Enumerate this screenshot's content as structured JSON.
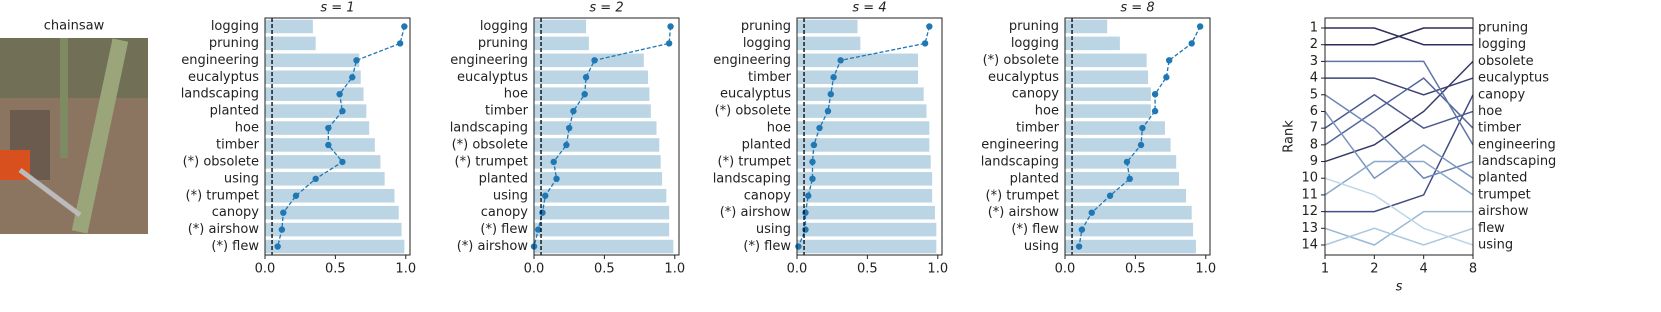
{
  "image": {
    "title": "chainsaw"
  },
  "chart_data": [
    {
      "type": "bar",
      "orientation": "horizontal",
      "title": "s = 1",
      "categories": [
        "logging",
        "pruning",
        "engineering",
        "eucalyptus",
        "landscaping",
        "planted",
        "hoe",
        "timber",
        "(*) obsolete",
        "using",
        "(*) trumpet",
        "canopy",
        "(*) airshow",
        "(*) flew"
      ],
      "series": [
        {
          "type": "bar",
          "color": "#bcd5e4",
          "values": [
            0.34,
            0.36,
            0.67,
            0.68,
            0.7,
            0.72,
            0.74,
            0.78,
            0.82,
            0.85,
            0.92,
            0.95,
            0.97,
            0.99
          ]
        },
        {
          "type": "line",
          "color": "#1f77b4",
          "values": [
            0.99,
            0.96,
            0.65,
            0.62,
            0.53,
            0.55,
            0.45,
            0.45,
            0.55,
            0.36,
            0.22,
            0.13,
            0.12,
            0.09
          ]
        }
      ],
      "threshold": 0.05,
      "xlim": [
        0,
        1.03
      ],
      "xticks": [
        {
          "value": 0,
          "label": "0.0"
        },
        0.5,
        {
          "value": 1,
          "label": "1.0"
        }
      ]
    },
    {
      "type": "bar",
      "orientation": "horizontal",
      "title": "s = 2",
      "categories": [
        "logging",
        "pruning",
        "engineering",
        "eucalyptus",
        "hoe",
        "timber",
        "landscaping",
        "(*) obsolete",
        "(*) trumpet",
        "planted",
        "using",
        "canopy",
        "(*) flew",
        "(*) airshow"
      ],
      "series": [
        {
          "type": "bar",
          "color": "#bcd5e4",
          "values": [
            0.37,
            0.39,
            0.78,
            0.81,
            0.82,
            0.83,
            0.87,
            0.89,
            0.9,
            0.91,
            0.94,
            0.96,
            0.96,
            0.99
          ]
        },
        {
          "type": "line",
          "color": "#1f77b4",
          "values": [
            0.97,
            0.96,
            0.43,
            0.37,
            0.36,
            0.28,
            0.25,
            0.23,
            0.14,
            0.16,
            0.08,
            0.06,
            0.03,
            0.0
          ]
        }
      ],
      "threshold": 0.05,
      "xlim": [
        0,
        1.03
      ],
      "xticks": [
        {
          "value": 0,
          "label": "0.0"
        },
        0.5,
        {
          "value": 1,
          "label": "1.0"
        }
      ]
    },
    {
      "type": "bar",
      "orientation": "horizontal",
      "title": "s = 4",
      "categories": [
        "pruning",
        "logging",
        "engineering",
        "timber",
        "eucalyptus",
        "(*) obsolete",
        "hoe",
        "planted",
        "(*) trumpet",
        "landscaping",
        "canopy",
        "(*) airshow",
        "using",
        "(*) flew"
      ],
      "series": [
        {
          "type": "bar",
          "color": "#bcd5e4",
          "values": [
            0.43,
            0.45,
            0.86,
            0.86,
            0.9,
            0.92,
            0.94,
            0.94,
            0.95,
            0.96,
            0.96,
            0.98,
            0.99,
            0.99
          ]
        },
        {
          "type": "line",
          "color": "#1f77b4",
          "values": [
            0.94,
            0.91,
            0.31,
            0.26,
            0.24,
            0.22,
            0.16,
            0.12,
            0.11,
            0.11,
            0.08,
            0.06,
            0.06,
            0.01
          ]
        }
      ],
      "threshold": 0.05,
      "xlim": [
        0,
        1.03
      ],
      "xticks": [
        {
          "value": 0,
          "label": "0.0"
        },
        0.5,
        {
          "value": 1,
          "label": "1.0"
        }
      ]
    },
    {
      "type": "bar",
      "orientation": "horizontal",
      "title": "s = 8",
      "categories": [
        "pruning",
        "logging",
        "(*) obsolete",
        "eucalyptus",
        "canopy",
        "hoe",
        "timber",
        "engineering",
        "landscaping",
        "planted",
        "(*) trumpet",
        "(*) airshow",
        "(*) flew",
        "using"
      ],
      "series": [
        {
          "type": "bar",
          "color": "#bcd5e4",
          "values": [
            0.3,
            0.39,
            0.58,
            0.59,
            0.61,
            0.61,
            0.71,
            0.75,
            0.79,
            0.81,
            0.86,
            0.9,
            0.91,
            0.93
          ]
        },
        {
          "type": "line",
          "color": "#1f77b4",
          "values": [
            0.96,
            0.9,
            0.74,
            0.72,
            0.64,
            0.64,
            0.55,
            0.54,
            0.44,
            0.46,
            0.32,
            0.19,
            0.12,
            0.1
          ]
        }
      ],
      "threshold": 0.05,
      "xlim": [
        0,
        1.03
      ],
      "xticks": [
        {
          "value": 0,
          "label": "0.0"
        },
        0.5,
        {
          "value": 1,
          "label": "1.0"
        }
      ]
    },
    {
      "type": "bump",
      "x": [
        1,
        2,
        4,
        8
      ],
      "xscale": "log",
      "xlim": [
        1,
        8
      ],
      "xticks": [
        1,
        2,
        4,
        8
      ],
      "ylim": [
        0.4,
        14.6
      ],
      "invert_y": true,
      "yticks": [
        1,
        2,
        3,
        4,
        5,
        6,
        7,
        8,
        9,
        10,
        11,
        12,
        13,
        14
      ],
      "xlabel": "s",
      "ylabel": "Rank",
      "series": [
        {
          "name": "pruning",
          "color": "#2b2b55",
          "values": [
            2,
            2,
            1,
            1
          ]
        },
        {
          "name": "logging",
          "color": "#2e2f5e",
          "values": [
            1,
            1,
            2,
            2
          ]
        },
        {
          "name": "obsolete",
          "color": "#353868",
          "values": [
            9,
            8,
            6,
            3
          ]
        },
        {
          "name": "eucalyptus",
          "color": "#3c4275",
          "values": [
            4,
            4,
            5,
            4
          ]
        },
        {
          "name": "canopy",
          "color": "#434d82",
          "values": [
            12,
            12,
            11,
            5
          ]
        },
        {
          "name": "hoe",
          "color": "#4b5a8f",
          "values": [
            7,
            5,
            7,
            6
          ]
        },
        {
          "name": "timber",
          "color": "#53679b",
          "values": [
            8,
            6,
            4,
            7
          ]
        },
        {
          "name": "engineering",
          "color": "#5e76a8",
          "values": [
            3,
            3,
            3,
            8
          ]
        },
        {
          "name": "landscaping",
          "color": "#6a86b4",
          "values": [
            5,
            7,
            10,
            9
          ]
        },
        {
          "name": "planted",
          "color": "#7896c0",
          "values": [
            6,
            10,
            8,
            10
          ]
        },
        {
          "name": "trumpet",
          "color": "#87a7cb",
          "values": [
            11,
            9,
            9,
            11
          ]
        },
        {
          "name": "airshow",
          "color": "#98b8d6",
          "values": [
            13,
            14,
            12,
            12
          ]
        },
        {
          "name": "flew",
          "color": "#aac8e0",
          "values": [
            14,
            13,
            14,
            13
          ]
        },
        {
          "name": "using",
          "color": "#bed6e8",
          "values": [
            10,
            11,
            13,
            14
          ]
        }
      ]
    }
  ]
}
